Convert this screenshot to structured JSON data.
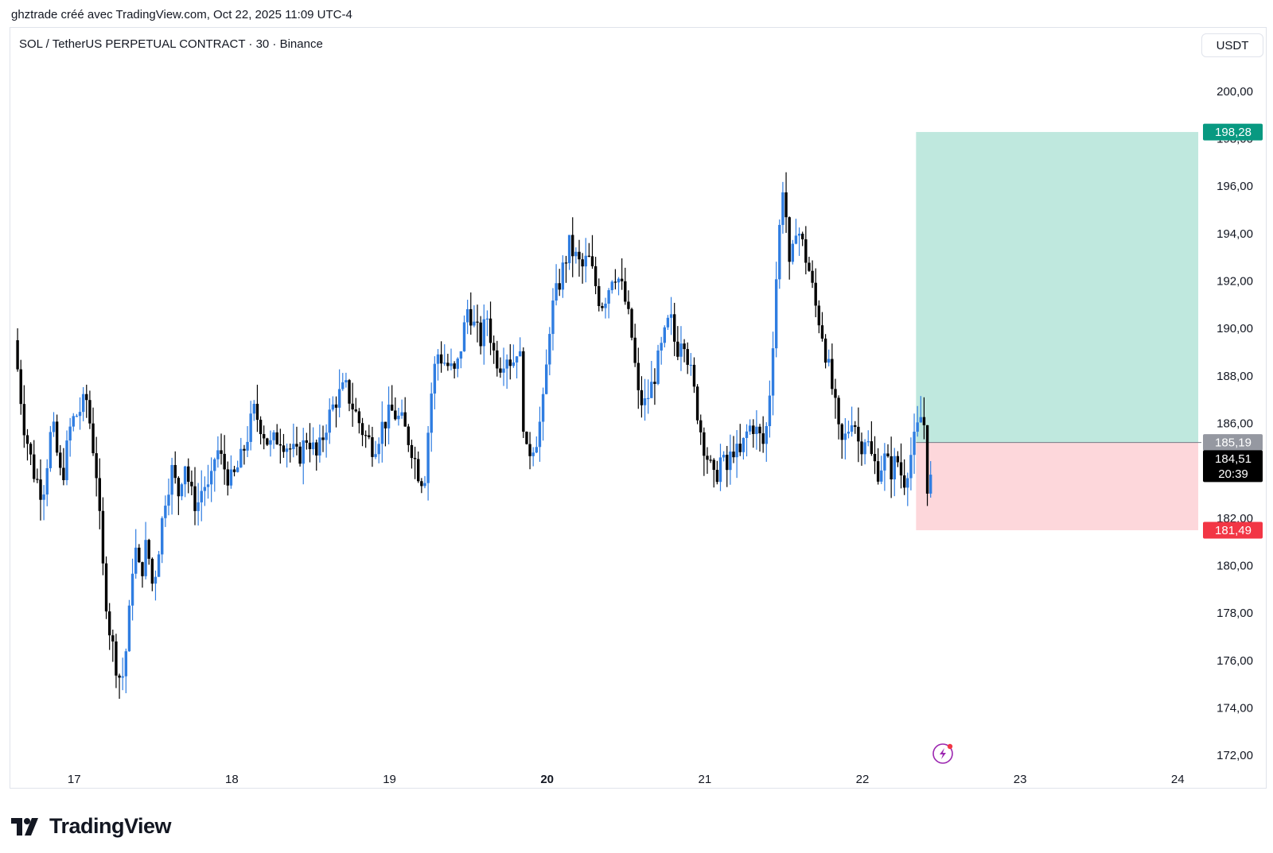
{
  "header": {
    "caption": "ghztrade créé avec TradingView.com, Oct 22, 2025 11:09 UTC-4"
  },
  "symbol": {
    "title": "SOL / TetherUS PERPETUAL CONTRACT · 30 · Binance"
  },
  "currency": {
    "label": "USDT"
  },
  "footer": {
    "logo_text": "TradingView"
  },
  "colors": {
    "up": "#2f7de1",
    "down": "#000000",
    "profit_zone": "#bfe8de",
    "loss_zone": "#fdd7db",
    "target_badge": "#089981",
    "stop_badge": "#f23645",
    "entry_badge": "#9598a1",
    "last_badge": "#000000"
  },
  "icons": {
    "alert": "lightning-alert-icon",
    "logo": "tradingview-logo-icon"
  },
  "chart_data": {
    "type": "candlestick",
    "interval": "30",
    "y_ticks": [
      "172,00",
      "174,00",
      "176,00",
      "178,00",
      "180,00",
      "182,00",
      "184,00",
      "186,00",
      "188,00",
      "190,00",
      "192,00",
      "194,00",
      "196,00",
      "198,00",
      "200,00"
    ],
    "y_range": [
      171.5,
      201.5
    ],
    "x_ticks": [
      {
        "label": "17",
        "day": 17,
        "bold": false
      },
      {
        "label": "18",
        "day": 18,
        "bold": false
      },
      {
        "label": "19",
        "day": 19,
        "bold": false
      },
      {
        "label": "20",
        "day": 20,
        "bold": true
      },
      {
        "label": "21",
        "day": 21,
        "bold": false
      },
      {
        "label": "22",
        "day": 22,
        "bold": false
      },
      {
        "label": "23",
        "day": 23,
        "bold": false
      },
      {
        "label": "24",
        "day": 24,
        "bold": false
      }
    ],
    "x_range_days": [
      16.6,
      24.15
    ],
    "position": {
      "type": "long",
      "entry": 185.19,
      "target": 198.28,
      "stop": 181.49,
      "start_day": 22.34,
      "end_day": 24.13,
      "entry_label": "185,19",
      "target_label": "198,28",
      "stop_label": "181,49"
    },
    "last_price": {
      "value": 184.51,
      "label": "184,51",
      "countdown": "20:39"
    },
    "keypoints": [
      [
        16.62,
        189.5
      ],
      [
        16.68,
        186.0
      ],
      [
        16.74,
        184.0
      ],
      [
        16.8,
        183.0
      ],
      [
        16.86,
        186.0
      ],
      [
        16.92,
        183.5
      ],
      [
        16.98,
        186.0
      ],
      [
        17.03,
        186.5
      ],
      [
        17.08,
        187.0
      ],
      [
        17.1,
        186.0
      ],
      [
        17.14,
        184.0
      ],
      [
        17.18,
        180.0
      ],
      [
        17.22,
        177.5
      ],
      [
        17.26,
        176.0
      ],
      [
        17.3,
        175.0
      ],
      [
        17.34,
        177.0
      ],
      [
        17.38,
        181.0
      ],
      [
        17.42,
        179.5
      ],
      [
        17.46,
        181.0
      ],
      [
        17.5,
        179.0
      ],
      [
        17.54,
        181.0
      ],
      [
        17.58,
        183.0
      ],
      [
        17.62,
        184.0
      ],
      [
        17.66,
        183.0
      ],
      [
        17.7,
        184.5
      ],
      [
        17.74,
        183.0
      ],
      [
        17.78,
        182.5
      ],
      [
        17.82,
        183.5
      ],
      [
        17.86,
        183.0
      ],
      [
        17.9,
        185.0
      ],
      [
        17.96,
        184.0
      ],
      [
        18.0,
        183.5
      ],
      [
        18.06,
        184.5
      ],
      [
        18.1,
        185.5
      ],
      [
        18.14,
        186.5
      ],
      [
        18.18,
        186.0
      ],
      [
        18.24,
        185.0
      ],
      [
        18.3,
        185.5
      ],
      [
        18.36,
        185.0
      ],
      [
        18.42,
        184.5
      ],
      [
        18.48,
        185.5
      ],
      [
        18.54,
        184.5
      ],
      [
        18.6,
        186.0
      ],
      [
        18.66,
        187.0
      ],
      [
        18.72,
        187.5
      ],
      [
        18.78,
        186.5
      ],
      [
        18.84,
        185.5
      ],
      [
        18.9,
        185.0
      ],
      [
        18.96,
        186.0
      ],
      [
        19.02,
        186.5
      ],
      [
        19.08,
        186.0
      ],
      [
        19.14,
        185.0
      ],
      [
        19.18,
        184.0
      ],
      [
        19.22,
        183.5
      ],
      [
        19.26,
        187.0
      ],
      [
        19.3,
        189.0
      ],
      [
        19.36,
        188.5
      ],
      [
        19.42,
        188.0
      ],
      [
        19.46,
        189.5
      ],
      [
        19.5,
        191.0
      ],
      [
        19.54,
        190.0
      ],
      [
        19.58,
        189.5
      ],
      [
        19.62,
        190.5
      ],
      [
        19.66,
        189.0
      ],
      [
        19.7,
        188.5
      ],
      [
        19.74,
        189.0
      ],
      [
        19.78,
        188.5
      ],
      [
        19.82,
        189.5
      ],
      [
        19.84,
        187.5
      ],
      [
        19.86,
        184.5
      ],
      [
        19.9,
        185.0
      ],
      [
        19.94,
        185.5
      ],
      [
        19.98,
        187.0
      ],
      [
        20.02,
        190.5
      ],
      [
        20.06,
        191.5
      ],
      [
        20.1,
        192.5
      ],
      [
        20.14,
        193.5
      ],
      [
        20.18,
        193.0
      ],
      [
        20.22,
        192.5
      ],
      [
        20.26,
        193.0
      ],
      [
        20.3,
        192.0
      ],
      [
        20.34,
        191.0
      ],
      [
        20.38,
        191.5
      ],
      [
        20.42,
        192.5
      ],
      [
        20.46,
        192.0
      ],
      [
        20.5,
        191.0
      ],
      [
        20.54,
        189.5
      ],
      [
        20.58,
        187.0
      ],
      [
        20.62,
        186.8
      ],
      [
        20.66,
        187.5
      ],
      [
        20.7,
        188.5
      ],
      [
        20.74,
        189.5
      ],
      [
        20.78,
        190.5
      ],
      [
        20.82,
        189.0
      ],
      [
        20.86,
        190.0
      ],
      [
        20.9,
        188.5
      ],
      [
        20.94,
        187.0
      ],
      [
        20.98,
        185.5
      ],
      [
        21.02,
        184.5
      ],
      [
        21.06,
        183.5
      ],
      [
        21.1,
        184.5
      ],
      [
        21.14,
        184.0
      ],
      [
        21.18,
        185.0
      ],
      [
        21.22,
        184.5
      ],
      [
        21.26,
        185.5
      ],
      [
        21.3,
        186.0
      ],
      [
        21.34,
        185.5
      ],
      [
        21.38,
        185.0
      ],
      [
        21.42,
        188.0
      ],
      [
        21.46,
        193.0
      ],
      [
        21.5,
        196.5
      ],
      [
        21.54,
        192.0
      ],
      [
        21.58,
        194.5
      ],
      [
        21.62,
        193.5
      ],
      [
        21.66,
        192.5
      ],
      [
        21.7,
        191.0
      ],
      [
        21.74,
        190.0
      ],
      [
        21.78,
        188.5
      ],
      [
        21.82,
        187.0
      ],
      [
        21.86,
        185.0
      ],
      [
        21.9,
        185.5
      ],
      [
        21.94,
        186.5
      ],
      [
        21.98,
        185.0
      ],
      [
        22.02,
        185.5
      ],
      [
        22.06,
        184.5
      ],
      [
        22.1,
        184.0
      ],
      [
        22.14,
        184.5
      ],
      [
        22.18,
        184.0
      ],
      [
        22.22,
        184.5
      ],
      [
        22.26,
        183.5
      ],
      [
        22.3,
        184.5
      ],
      [
        22.34,
        185.5
      ],
      [
        22.38,
        186.5
      ],
      [
        22.4,
        185.5
      ],
      [
        22.42,
        182.0
      ],
      [
        22.44,
        184.5
      ]
    ]
  }
}
